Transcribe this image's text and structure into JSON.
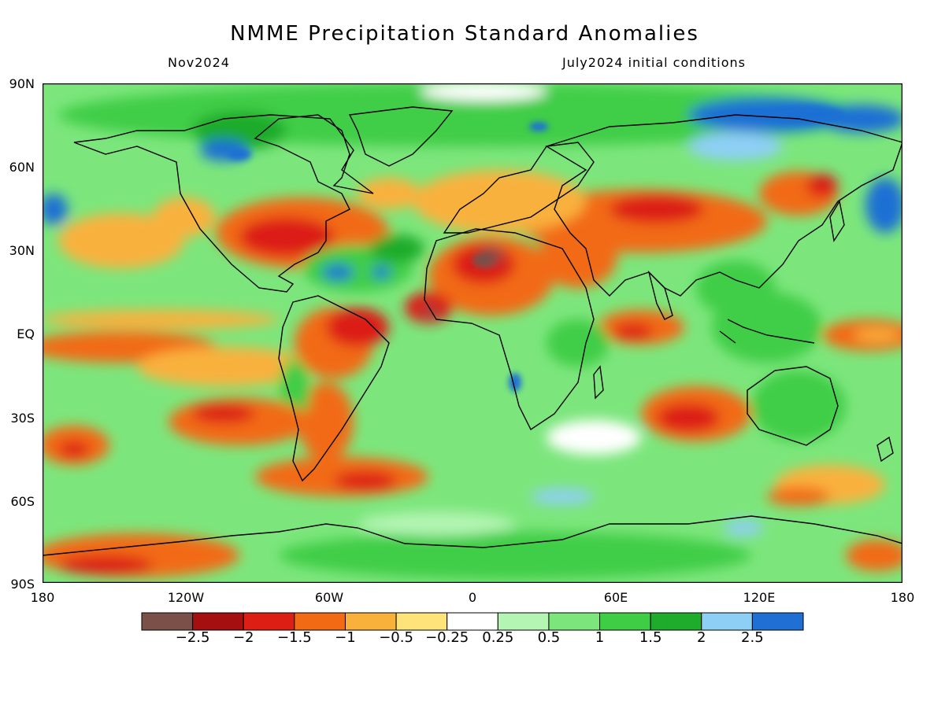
{
  "title": "NMME Precipitation Standard Anomalies",
  "subtitle_left": "Nov2024",
  "subtitle_right": "July2024 initial conditions",
  "lat_labels": [
    "90N",
    "60N",
    "30N",
    "EQ",
    "30S",
    "60S",
    "90S"
  ],
  "lon_labels": [
    "180",
    "120W",
    "60W",
    "0",
    "60E",
    "120E",
    "180"
  ],
  "colorbar": {
    "colors": [
      "#7a5048",
      "#a50f0f",
      "#dc1e14",
      "#f26a14",
      "#f9b13c",
      "#fde37a",
      "#ffffff",
      "#b4f5b4",
      "#7ce67c",
      "#3fcd46",
      "#1fab2c",
      "#8ecff6",
      "#1f6fd4"
    ],
    "labels": [
      "−2.5",
      "−2",
      "−1.5",
      "−1",
      "−0.5",
      "−0.25",
      "0.25",
      "0.5",
      "1",
      "1.5",
      "2",
      "2.5"
    ]
  }
}
